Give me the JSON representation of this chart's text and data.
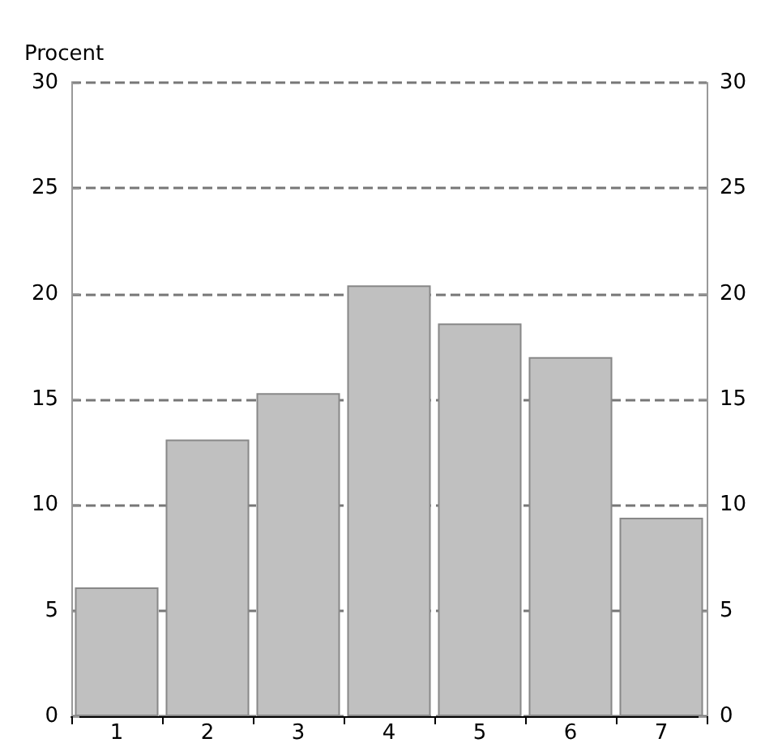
{
  "chart_data": {
    "type": "bar",
    "ylabel": "Procent",
    "categories": [
      "1",
      "2",
      "3",
      "4",
      "5",
      "6",
      "7"
    ],
    "values": [
      6.1,
      13.1,
      15.3,
      20.4,
      18.6,
      17.0,
      9.4
    ],
    "color": "#c0c0c0",
    "ylim": [
      0,
      30
    ],
    "yticks": [
      0,
      5,
      10,
      15,
      20,
      25,
      30
    ],
    "y2lim": [
      0,
      30
    ],
    "y2ticks": [
      0,
      5,
      10,
      15,
      20,
      25,
      30
    ],
    "grid": "y"
  }
}
